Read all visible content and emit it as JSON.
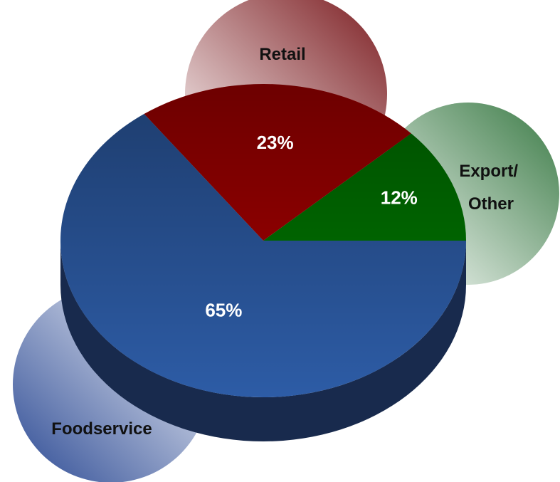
{
  "chart_data": {
    "type": "pie",
    "categories": [
      "Foodservice",
      "Retail",
      "Export/ Other"
    ],
    "values": [
      65,
      23,
      12
    ],
    "value_labels": [
      "65%",
      "23%",
      "12%"
    ],
    "colors": [
      "#2d5ca6",
      "#a80000",
      "#007800"
    ]
  }
}
